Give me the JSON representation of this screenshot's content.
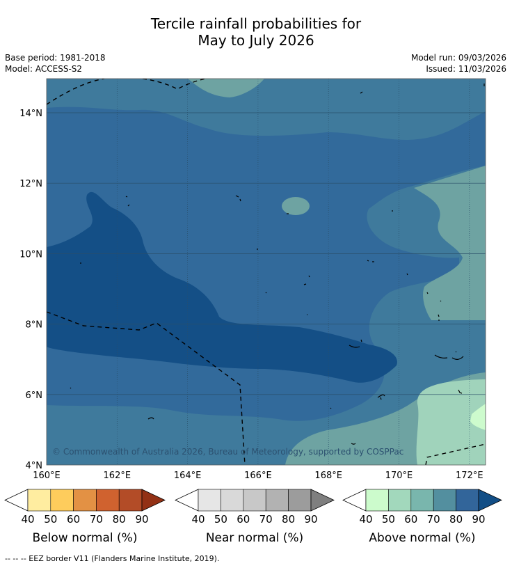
{
  "title": {
    "line1": "Tercile rainfall probabilities for",
    "line2": "May to July 2026"
  },
  "base_period": "Base period: 1981-2018",
  "model": "Model: ACCESS-S2",
  "model_run": "Model run: 09/03/2026",
  "issued": "Issued: 11/03/2026",
  "map": {
    "lon_ticks": [
      "160°E",
      "162°E",
      "164°E",
      "166°E",
      "168°E",
      "170°E",
      "172°E"
    ],
    "lat_ticks": [
      "14°N",
      "12°N",
      "10°N",
      "8°N",
      "6°N",
      "4°N"
    ],
    "copyright": "© Commonwealth of Australia 2026, Bureau of Meteorology, supported by COSPPac"
  },
  "legends": [
    {
      "label": "Below normal (%)",
      "ticks": [
        "40",
        "50",
        "60",
        "70",
        "80",
        "90"
      ],
      "colors": [
        "#ffeda0",
        "#fecc5c",
        "#e39144",
        "#d0622f",
        "#b34c27",
        "#933115"
      ]
    },
    {
      "label": "Near normal (%)",
      "ticks": [
        "40",
        "50",
        "60",
        "70",
        "80",
        "90"
      ],
      "colors": [
        "#e6e6e6",
        "#d9d9d9",
        "#c8c8c8",
        "#b2b2b2",
        "#9c9c9c",
        "#7f7f7f"
      ]
    },
    {
      "label": "Above normal (%)",
      "ticks": [
        "40",
        "50",
        "60",
        "70",
        "80",
        "90"
      ],
      "colors": [
        "#ccfbcc",
        "#a2d8bc",
        "#79b6ad",
        "#538f9f",
        "#32659a",
        "#124e86"
      ]
    }
  ],
  "footnote": "--  --  -- EEZ border V11 (Flanders Marine Institute, 2019)."
}
